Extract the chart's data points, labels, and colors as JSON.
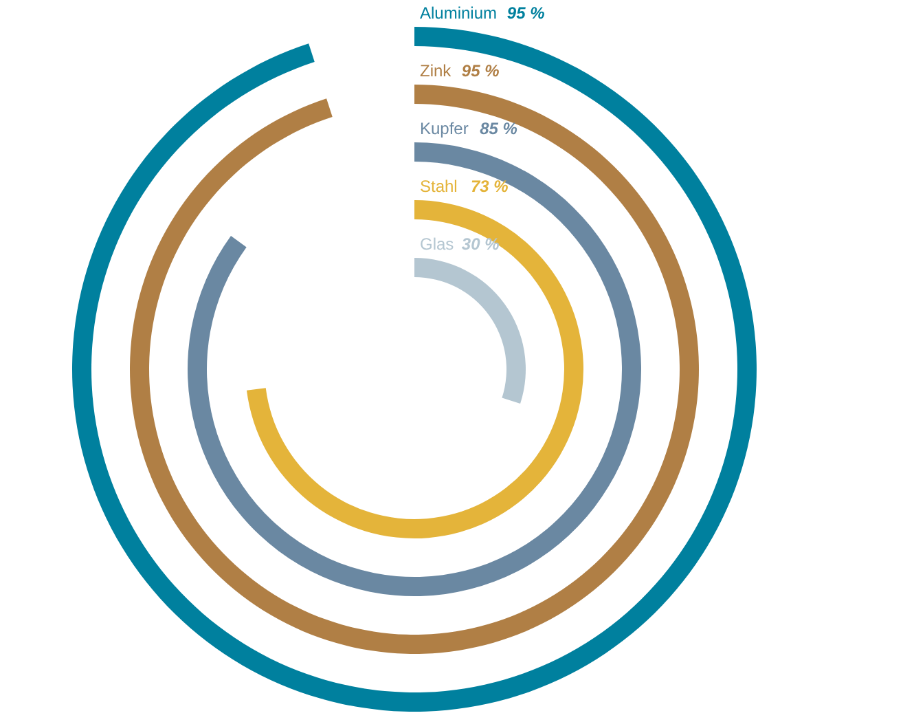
{
  "chart_data": {
    "type": "other",
    "categories": [
      "Aluminium",
      "Zink",
      "Kupfer",
      "Stahl",
      "Glas"
    ],
    "values": [
      95,
      95,
      85,
      73,
      30
    ],
    "value_labels": [
      "95 %",
      "95 %",
      "85 %",
      "73 %",
      "30 %"
    ],
    "colors": [
      "#00809e",
      "#b07f45",
      "#6a88a2",
      "#e4b43a",
      "#b4c6d1"
    ]
  }
}
